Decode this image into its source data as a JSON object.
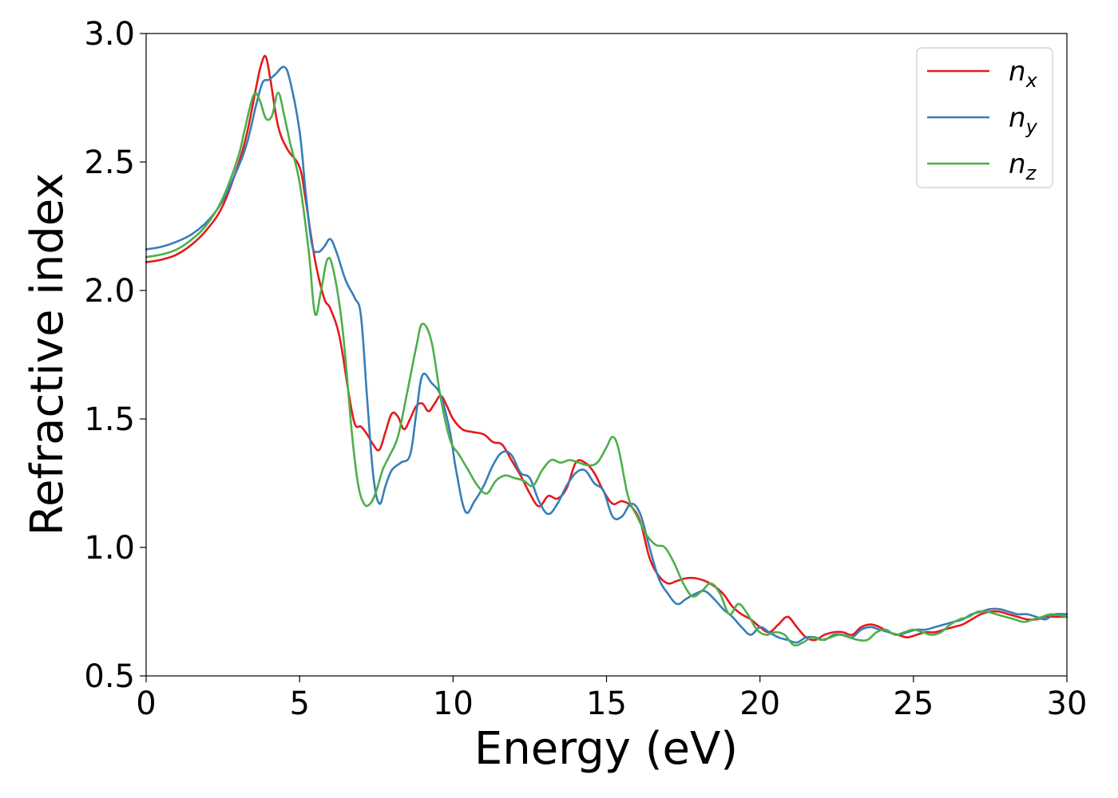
{
  "chart_data": {
    "type": "line",
    "title": "",
    "xlabel": "Energy (eV)",
    "ylabel": "Refractive index",
    "xlim": [
      0,
      30
    ],
    "ylim": [
      0.5,
      3.0
    ],
    "xticks": [
      "0",
      "5",
      "10",
      "15",
      "20",
      "25",
      "30"
    ],
    "yticks": [
      "0.5",
      "1.0",
      "1.5",
      "2.0",
      "2.5",
      "3.0"
    ],
    "grid": false,
    "legend_position": "top-right",
    "series": [
      {
        "name": "n_x",
        "label_main": "n",
        "label_sub": "x",
        "color": "#e41a1c",
        "x": [
          0,
          0.5,
          1,
          1.5,
          2,
          2.5,
          3,
          3.3,
          3.6,
          3.75,
          3.9,
          4.05,
          4.3,
          4.6,
          5,
          5.2,
          5.5,
          5.8,
          6.0,
          6.3,
          6.6,
          6.8,
          7.0,
          7.2,
          7.4,
          7.6,
          7.8,
          8.0,
          8.2,
          8.4,
          8.6,
          8.8,
          9.0,
          9.2,
          9.4,
          9.6,
          9.8,
          10.0,
          10.3,
          10.6,
          11.0,
          11.3,
          11.6,
          11.9,
          12.2,
          12.5,
          12.8,
          13.1,
          13.4,
          13.7,
          14.0,
          14.3,
          14.6,
          14.9,
          15.2,
          15.5,
          15.8,
          16.1,
          16.4,
          16.7,
          17.0,
          17.3,
          17.6,
          17.9,
          18.2,
          18.5,
          18.8,
          19.1,
          19.4,
          19.7,
          20.0,
          20.3,
          20.6,
          20.9,
          21.2,
          21.5,
          21.8,
          22.1,
          22.4,
          22.7,
          23.0,
          23.3,
          23.6,
          23.9,
          24.2,
          24.5,
          24.8,
          25.1,
          25.4,
          25.7,
          26.0,
          26.3,
          26.6,
          26.9,
          27.2,
          27.5,
          27.8,
          28.1,
          28.4,
          28.7,
          29.0,
          29.3,
          29.6,
          30
        ],
        "y": [
          2.11,
          2.12,
          2.14,
          2.18,
          2.24,
          2.33,
          2.49,
          2.62,
          2.8,
          2.88,
          2.91,
          2.82,
          2.64,
          2.55,
          2.48,
          2.35,
          2.12,
          1.97,
          1.93,
          1.82,
          1.6,
          1.48,
          1.47,
          1.44,
          1.4,
          1.38,
          1.45,
          1.52,
          1.51,
          1.46,
          1.5,
          1.55,
          1.56,
          1.53,
          1.56,
          1.59,
          1.55,
          1.5,
          1.46,
          1.45,
          1.44,
          1.41,
          1.4,
          1.34,
          1.28,
          1.21,
          1.16,
          1.2,
          1.19,
          1.23,
          1.33,
          1.33,
          1.29,
          1.22,
          1.17,
          1.18,
          1.16,
          1.1,
          0.96,
          0.89,
          0.86,
          0.87,
          0.88,
          0.88,
          0.87,
          0.85,
          0.82,
          0.77,
          0.74,
          0.72,
          0.69,
          0.67,
          0.7,
          0.73,
          0.69,
          0.65,
          0.64,
          0.66,
          0.67,
          0.67,
          0.66,
          0.69,
          0.7,
          0.69,
          0.67,
          0.66,
          0.65,
          0.66,
          0.67,
          0.67,
          0.68,
          0.69,
          0.7,
          0.72,
          0.74,
          0.75,
          0.75,
          0.74,
          0.73,
          0.72,
          0.72,
          0.73,
          0.73,
          0.73
        ]
      },
      {
        "name": "n_y",
        "label_main": "n",
        "label_sub": "y",
        "color": "#377eb8",
        "x": [
          0,
          0.5,
          1,
          1.5,
          2,
          2.5,
          3,
          3.3,
          3.6,
          3.8,
          4.0,
          4.2,
          4.5,
          4.7,
          5.0,
          5.2,
          5.4,
          5.6,
          5.8,
          6.0,
          6.2,
          6.5,
          6.8,
          7.0,
          7.2,
          7.4,
          7.6,
          7.8,
          8.0,
          8.3,
          8.6,
          8.8,
          9.0,
          9.3,
          9.6,
          9.9,
          10.1,
          10.4,
          10.7,
          11.0,
          11.3,
          11.6,
          11.9,
          12.2,
          12.5,
          12.8,
          13.1,
          13.4,
          13.7,
          14.0,
          14.3,
          14.6,
          14.9,
          15.2,
          15.5,
          15.8,
          16.1,
          16.4,
          16.7,
          17.0,
          17.3,
          17.6,
          17.9,
          18.2,
          18.5,
          18.8,
          19.1,
          19.4,
          19.7,
          20.0,
          20.3,
          20.6,
          20.9,
          21.2,
          21.5,
          21.8,
          22.1,
          22.4,
          22.7,
          23.0,
          23.3,
          23.6,
          23.9,
          24.2,
          24.5,
          24.8,
          25.1,
          25.4,
          25.7,
          26.0,
          26.3,
          26.6,
          26.9,
          27.2,
          27.5,
          27.8,
          28.1,
          28.4,
          28.7,
          29.0,
          29.3,
          29.6,
          30
        ],
        "y": [
          2.16,
          2.17,
          2.19,
          2.22,
          2.27,
          2.35,
          2.48,
          2.58,
          2.73,
          2.81,
          2.82,
          2.84,
          2.87,
          2.81,
          2.62,
          2.38,
          2.18,
          2.15,
          2.17,
          2.2,
          2.15,
          2.04,
          1.97,
          1.9,
          1.58,
          1.28,
          1.17,
          1.24,
          1.3,
          1.33,
          1.36,
          1.52,
          1.67,
          1.64,
          1.59,
          1.45,
          1.3,
          1.14,
          1.18,
          1.24,
          1.32,
          1.37,
          1.36,
          1.29,
          1.27,
          1.18,
          1.13,
          1.17,
          1.24,
          1.29,
          1.3,
          1.25,
          1.22,
          1.12,
          1.12,
          1.17,
          1.13,
          1.0,
          0.88,
          0.82,
          0.78,
          0.8,
          0.82,
          0.83,
          0.8,
          0.76,
          0.73,
          0.69,
          0.66,
          0.69,
          0.67,
          0.65,
          0.64,
          0.63,
          0.65,
          0.65,
          0.64,
          0.66,
          0.66,
          0.65,
          0.68,
          0.69,
          0.68,
          0.67,
          0.66,
          0.67,
          0.68,
          0.68,
          0.69,
          0.7,
          0.71,
          0.72,
          0.74,
          0.75,
          0.76,
          0.76,
          0.75,
          0.74,
          0.74,
          0.73,
          0.72,
          0.74,
          0.74
        ]
      },
      {
        "name": "n_z",
        "label_main": "n",
        "label_sub": "z",
        "color": "#4daf4a",
        "x": [
          0,
          0.5,
          1,
          1.5,
          2,
          2.5,
          3,
          3.2,
          3.5,
          3.7,
          3.9,
          4.1,
          4.3,
          4.5,
          4.7,
          5.0,
          5.3,
          5.5,
          5.7,
          5.9,
          6.1,
          6.4,
          6.7,
          6.9,
          7.1,
          7.3,
          7.5,
          7.7,
          7.9,
          8.2,
          8.5,
          8.8,
          9.0,
          9.3,
          9.6,
          9.9,
          10.2,
          10.5,
          10.8,
          11.1,
          11.4,
          11.7,
          12.0,
          12.3,
          12.6,
          12.9,
          13.2,
          13.5,
          13.8,
          14.1,
          14.4,
          14.7,
          15.0,
          15.2,
          15.4,
          15.7,
          16.0,
          16.3,
          16.6,
          16.9,
          17.2,
          17.5,
          17.8,
          18.1,
          18.4,
          18.7,
          19.0,
          19.3,
          19.6,
          19.9,
          20.2,
          20.5,
          20.8,
          21.1,
          21.4,
          21.7,
          22.0,
          22.3,
          22.6,
          22.9,
          23.2,
          23.5,
          23.8,
          24.1,
          24.4,
          24.7,
          25.0,
          25.3,
          25.6,
          25.9,
          26.2,
          26.5,
          26.8,
          27.1,
          27.4,
          27.7,
          28.0,
          28.3,
          28.6,
          28.9,
          29.2,
          29.5,
          30
        ],
        "y": [
          2.13,
          2.14,
          2.16,
          2.2,
          2.26,
          2.36,
          2.52,
          2.62,
          2.76,
          2.74,
          2.67,
          2.68,
          2.77,
          2.68,
          2.57,
          2.42,
          2.15,
          1.91,
          2.0,
          2.12,
          2.08,
          1.85,
          1.45,
          1.25,
          1.17,
          1.17,
          1.22,
          1.3,
          1.35,
          1.43,
          1.6,
          1.78,
          1.87,
          1.8,
          1.58,
          1.42,
          1.36,
          1.3,
          1.24,
          1.21,
          1.26,
          1.28,
          1.27,
          1.26,
          1.24,
          1.3,
          1.34,
          1.33,
          1.34,
          1.33,
          1.32,
          1.33,
          1.39,
          1.43,
          1.38,
          1.2,
          1.12,
          1.05,
          1.01,
          1.0,
          0.94,
          0.86,
          0.81,
          0.83,
          0.86,
          0.82,
          0.74,
          0.78,
          0.74,
          0.68,
          0.66,
          0.67,
          0.66,
          0.62,
          0.63,
          0.65,
          0.64,
          0.65,
          0.66,
          0.65,
          0.64,
          0.64,
          0.67,
          0.68,
          0.66,
          0.67,
          0.68,
          0.67,
          0.66,
          0.67,
          0.7,
          0.72,
          0.73,
          0.75,
          0.75,
          0.74,
          0.73,
          0.72,
          0.71,
          0.72,
          0.73,
          0.74,
          0.73
        ]
      }
    ]
  }
}
